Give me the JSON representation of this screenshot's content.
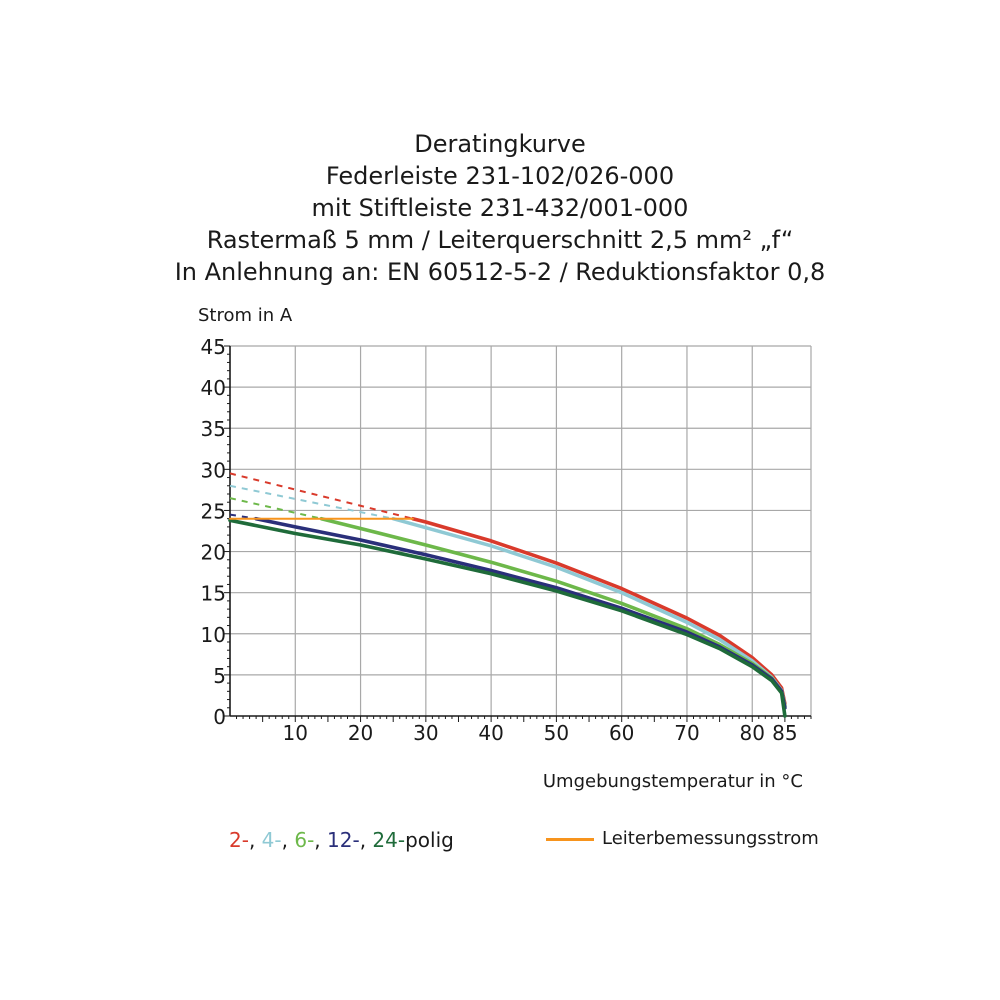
{
  "chart_data": {
    "type": "line",
    "title": [
      "Deratingkurve",
      "Federleiste 231-102/026-000",
      "mit Stiftleiste 231-432/001-000",
      "Rastermaß 5 mm / Leiterquerschnitt 2,5 mm² „f“",
      "In Anlehnung an: EN 60512-5-2 / Reduktionsfaktor 0,8"
    ],
    "ylabel": "Strom in A",
    "xlabel": "Umgebungstemperatur in °C",
    "xlim": [
      0,
      89
    ],
    "ylim": [
      0,
      45
    ],
    "xticks": [
      "10",
      "20",
      "30",
      "40",
      "50",
      "60",
      "70",
      "80",
      "85"
    ],
    "xtick_values": [
      10,
      20,
      30,
      40,
      50,
      60,
      70,
      80,
      85
    ],
    "yticks": [
      "0",
      "5",
      "10",
      "15",
      "20",
      "25",
      "30",
      "35",
      "40",
      "45"
    ],
    "ytick_values": [
      0,
      5,
      10,
      15,
      20,
      25,
      30,
      35,
      40,
      45
    ],
    "grid": true,
    "series": [
      {
        "name": "2-",
        "color": "#d93a2b",
        "dashed": [
          [
            0,
            29.5
          ],
          [
            28,
            24
          ]
        ],
        "solid": [
          [
            28,
            24
          ],
          [
            30,
            23.6
          ],
          [
            40,
            21.3
          ],
          [
            50,
            18.6
          ],
          [
            60,
            15.5
          ],
          [
            70,
            11.9
          ],
          [
            75,
            9.8
          ],
          [
            80,
            7.1
          ],
          [
            83,
            5.0
          ],
          [
            84.5,
            3.4
          ],
          [
            85,
            1.5
          ]
        ]
      },
      {
        "name": "4-",
        "color": "#8fc9d4",
        "dashed": [
          [
            0,
            28
          ],
          [
            25,
            24
          ]
        ],
        "solid": [
          [
            25,
            24
          ],
          [
            30,
            22.9
          ],
          [
            40,
            20.7
          ],
          [
            50,
            18.1
          ],
          [
            60,
            15.0
          ],
          [
            70,
            11.4
          ],
          [
            75,
            9.3
          ],
          [
            80,
            6.7
          ],
          [
            83,
            4.7
          ],
          [
            84.5,
            3.1
          ],
          [
            85,
            1.2
          ]
        ]
      },
      {
        "name": "6-",
        "color": "#6db84a",
        "dashed": [
          [
            0,
            26.5
          ],
          [
            14,
            24
          ]
        ],
        "solid": [
          [
            14,
            24
          ],
          [
            20,
            22.8
          ],
          [
            30,
            20.8
          ],
          [
            40,
            18.7
          ],
          [
            50,
            16.4
          ],
          [
            60,
            13.7
          ],
          [
            70,
            10.6
          ],
          [
            75,
            8.7
          ],
          [
            80,
            6.4
          ],
          [
            83,
            4.6
          ],
          [
            84.5,
            3.0
          ],
          [
            85,
            1.2
          ]
        ]
      },
      {
        "name": "12-",
        "color": "#2a2f7a",
        "dashed": [
          [
            0,
            24.5
          ],
          [
            4,
            24
          ]
        ],
        "solid": [
          [
            4,
            24
          ],
          [
            10,
            23.0
          ],
          [
            20,
            21.4
          ],
          [
            30,
            19.6
          ],
          [
            40,
            17.7
          ],
          [
            50,
            15.6
          ],
          [
            60,
            13.1
          ],
          [
            70,
            10.2
          ],
          [
            75,
            8.4
          ],
          [
            80,
            6.2
          ],
          [
            83,
            4.5
          ],
          [
            84.5,
            3.0
          ],
          [
            85,
            1.0
          ]
        ]
      },
      {
        "name": "24-",
        "color": "#1f6b3a",
        "dashed": [],
        "solid": [
          [
            0,
            23.8
          ],
          [
            10,
            22.2
          ],
          [
            20,
            20.8
          ],
          [
            30,
            19.1
          ],
          [
            40,
            17.3
          ],
          [
            50,
            15.2
          ],
          [
            60,
            12.8
          ],
          [
            70,
            9.9
          ],
          [
            75,
            8.2
          ],
          [
            80,
            6.0
          ],
          [
            83,
            4.3
          ],
          [
            84.5,
            2.8
          ],
          [
            85,
            0
          ]
        ]
      },
      {
        "name": "Leiterbemessungsstrom",
        "color": "#f7941d",
        "dashed": [],
        "solid": [
          [
            0,
            24
          ],
          [
            28,
            24
          ]
        ]
      }
    ]
  },
  "legend": {
    "items": [
      {
        "text": "2-",
        "color": "#d93a2b"
      },
      {
        "text": ", ",
        "color": "#1a1a1a"
      },
      {
        "text": "4-",
        "color": "#8fc9d4"
      },
      {
        "text": ", ",
        "color": "#1a1a1a"
      },
      {
        "text": "6-",
        "color": "#6db84a"
      },
      {
        "text": ", ",
        "color": "#1a1a1a"
      },
      {
        "text": "12-",
        "color": "#2a2f7a"
      },
      {
        "text": ", ",
        "color": "#1a1a1a"
      },
      {
        "text": "24-",
        "color": "#1f6b3a"
      },
      {
        "text": "polig",
        "color": "#1a1a1a"
      }
    ],
    "rated_current_label": "Leiterbemessungsstrom"
  }
}
